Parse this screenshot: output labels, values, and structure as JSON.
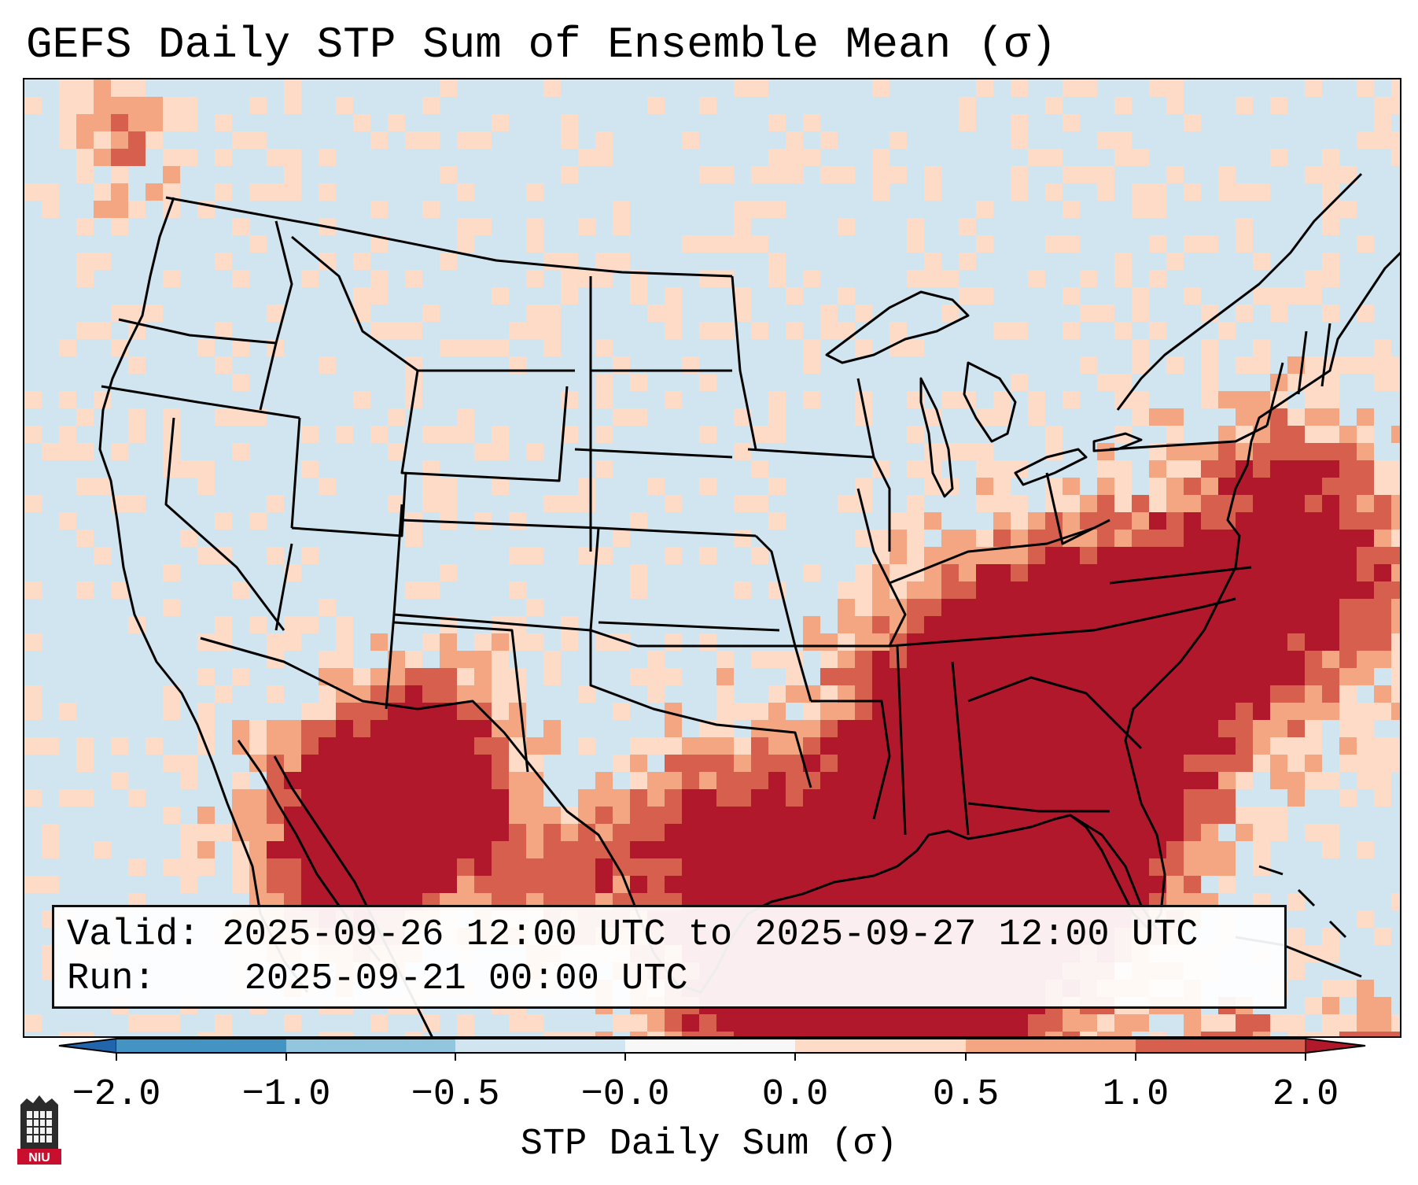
{
  "title": "GEFS Daily STP Sum of Ensemble Mean (σ)",
  "info": {
    "valid_label": "Valid:",
    "valid_value": "2025-09-26 12:00 UTC to 2025-09-27 12:00 UTC",
    "run_label": "Run:",
    "run_value": "2025-09-21 00:00 UTC"
  },
  "colorbar": {
    "label": "STP Daily Sum (σ)",
    "ticks": [
      "−2.0",
      "−1.0",
      "−0.5",
      "−0.0",
      "0.0",
      "0.5",
      "1.0",
      "2.0"
    ],
    "bins": [
      {
        "range": "<-2.0",
        "color": "#2166ac"
      },
      {
        "range": "-2.0 to -1.0",
        "color": "#4393c3"
      },
      {
        "range": "-1.0 to -0.5",
        "color": "#92c5de"
      },
      {
        "range": "-0.5 to -0.0",
        "color": "#d1e5f0"
      },
      {
        "range": "0.0",
        "color": "#f7f7f7"
      },
      {
        "range": "0.0 to 0.5",
        "color": "#fddbc7"
      },
      {
        "range": "0.5 to 1.0",
        "color": "#f4a582"
      },
      {
        "range": "1.0 to 2.0",
        "color": "#d6604d"
      },
      {
        "range": ">2.0",
        "color": "#b2182b"
      }
    ]
  },
  "map": {
    "region": "Contiguous United States",
    "background_color": "#d1e5f0"
  },
  "logo": {
    "text": "NIU",
    "name": "Northern Illinois University"
  }
}
